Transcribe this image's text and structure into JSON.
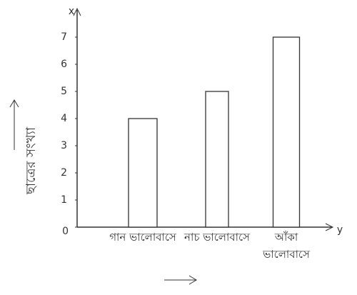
{
  "chart_data": {
    "type": "bar",
    "y_label": "ছাত্রের সংখ্যা",
    "y_axis_letter": "x",
    "x_axis_letter": "y",
    "categories": [
      "গান ভালোবাসে",
      "নাচ ভালোবাসে",
      "আঁকা ভালোবাসে"
    ],
    "values": [
      4,
      5,
      7
    ],
    "color": "#ffffff",
    "ylim": [
      0,
      8
    ],
    "yticks": [
      0,
      1,
      2,
      3,
      4,
      5,
      6,
      7
    ]
  }
}
